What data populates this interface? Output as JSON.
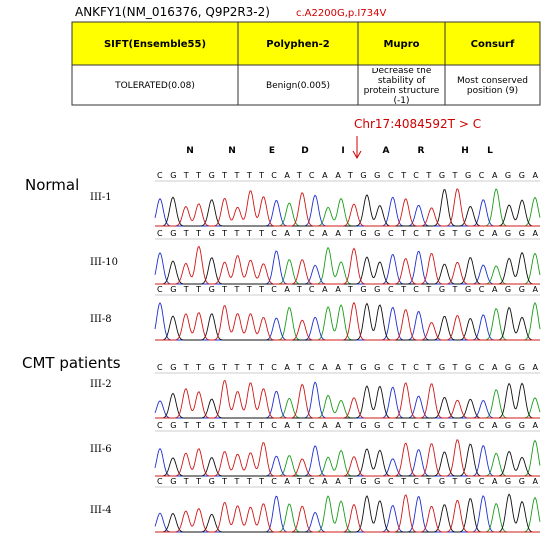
{
  "header": {
    "gene": "ANKFY1(NM_016376, Q9P2R3-2)",
    "variant": "c.A2200G,p.I734V"
  },
  "table": {
    "headers": [
      "SIFT(Ensemble55)",
      "Polyphen-2",
      "Mupro",
      "Consurf"
    ],
    "rows": [
      [
        "TOLERATED(0.08)",
        "Benign(0.005)",
        "Decrease the stability of protein structure (-1)",
        "Most conserved position (9)"
      ]
    ]
  },
  "mutation_label": "Chr17:4084592T > C",
  "amino_acids": [
    "N",
    "N",
    "E",
    "D",
    "I",
    "A",
    "R",
    "H",
    "L"
  ],
  "groups": [
    "Normal",
    "CMT patients"
  ],
  "sequence": "CGTTGTTTTCATCAATGGCTCTGTGCAGGA",
  "samples": [
    "III-1",
    "III-10",
    "III-8",
    "III-2",
    "III-6",
    "III-4"
  ]
}
